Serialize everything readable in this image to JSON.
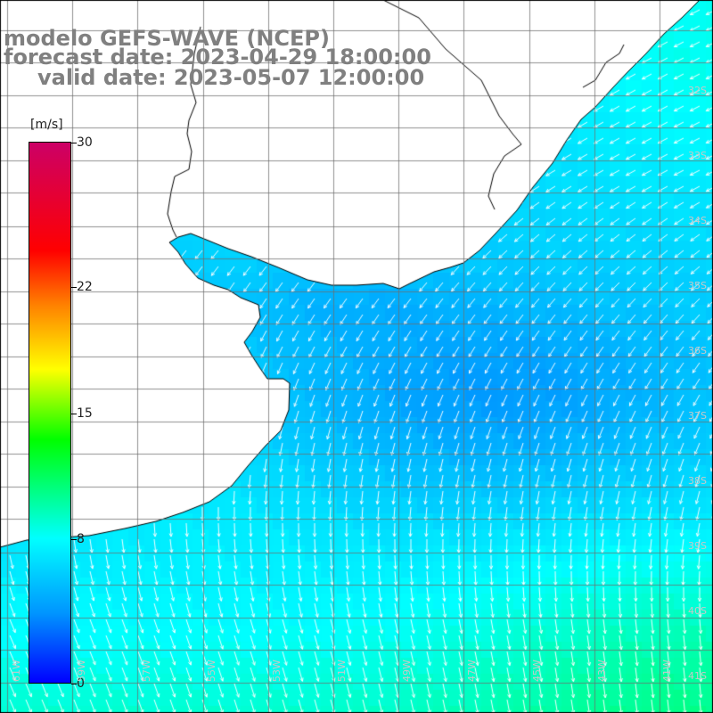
{
  "title": {
    "line1": "modelo GEFS-WAVE (NCEP)",
    "line2": "forecast date: 2023-04-29 18:00:00",
    "line3": "valid date: 2023-05-07 12:00:00"
  },
  "colorbar": {
    "unit": "[m/s]",
    "ticks": [
      {
        "value": 30,
        "label": "30"
      },
      {
        "value": 22,
        "label": "22"
      },
      {
        "value": 15,
        "label": "15"
      },
      {
        "value": 8,
        "label": "8"
      },
      {
        "value": 0,
        "label": "0"
      }
    ],
    "colors": [
      "#0000ff",
      "#0096ff",
      "#00ffff",
      "#00ff00",
      "#ffff00",
      "#ff8000",
      "#ff0000",
      "#cc0066"
    ]
  },
  "map": {
    "field": "wind speed",
    "land_color": "#ffffff",
    "gridlines": true,
    "vectors": "wind direction arrows",
    "lon_labels": [
      "61W",
      "59W",
      "57W",
      "55W",
      "53W",
      "51W",
      "49W",
      "47W",
      "45W",
      "43W",
      "41W"
    ],
    "lat_labels": [
      "32S",
      "33S",
      "34S",
      "35S",
      "36S",
      "37S",
      "38S",
      "39S",
      "40S",
      "41S"
    ]
  }
}
